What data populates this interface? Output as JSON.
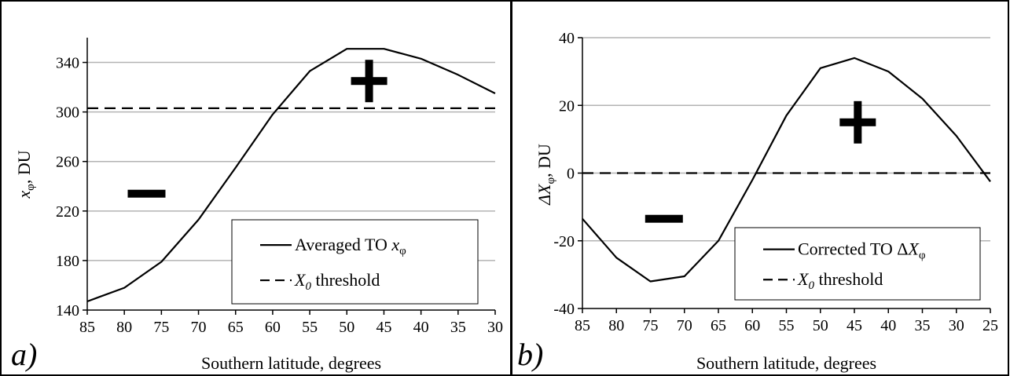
{
  "chart_data": [
    {
      "panel_label": "a)",
      "type": "line",
      "xlabel": "Southern latitude, degrees",
      "ylabel_main": "x",
      "ylabel_sub": "φ",
      "ylabel_tail": ", DU",
      "xlim": [
        85,
        30
      ],
      "ylim": [
        140,
        360
      ],
      "xticks": [
        85,
        80,
        75,
        70,
        65,
        60,
        55,
        50,
        45,
        40,
        35,
        30
      ],
      "yticks": [
        140,
        180,
        220,
        260,
        300,
        340
      ],
      "grid": true,
      "legend_placement": "bottom-right",
      "series": [
        {
          "name": "Averaged TO x",
          "name_sub": "φ",
          "style": "solid",
          "x": [
            85,
            80,
            75,
            70,
            65,
            60,
            55,
            50,
            45,
            40,
            35,
            30
          ],
          "y": [
            147,
            158,
            179,
            213,
            255,
            298,
            333,
            351,
            351,
            343,
            330,
            315
          ]
        },
        {
          "name": "X",
          "name_sub": "0",
          "name_tail": " threshold",
          "style": "dashed",
          "x": [
            85,
            30
          ],
          "y": [
            303,
            303
          ]
        }
      ],
      "annotations": [
        {
          "symbol": "minus",
          "x": 77,
          "y": 234
        },
        {
          "symbol": "plus",
          "x": 47,
          "y": 325
        }
      ]
    },
    {
      "panel_label": "b)",
      "type": "line",
      "xlabel": "Southern latitude, degrees",
      "ylabel_main": "ΔX",
      "ylabel_sub": "φ",
      "ylabel_tail": ", DU",
      "xlim": [
        85,
        25
      ],
      "ylim": [
        -40,
        40
      ],
      "xticks": [
        85,
        80,
        75,
        70,
        65,
        60,
        55,
        50,
        45,
        40,
        35,
        30,
        25
      ],
      "yticks": [
        -40,
        -20,
        0,
        20,
        40
      ],
      "grid": true,
      "legend_placement": "bottom-right",
      "series": [
        {
          "name": "Corrected TO  ΔX",
          "name_sub": "φ",
          "style": "solid",
          "x": [
            85,
            80,
            75,
            70,
            65,
            60,
            55,
            50,
            45,
            40,
            35,
            30,
            25
          ],
          "y": [
            -13.5,
            -25,
            -32,
            -30.5,
            -20,
            -2,
            17,
            31,
            34,
            30,
            22,
            11,
            -2.5
          ]
        },
        {
          "name": "X",
          "name_sub": "0",
          "name_tail": " threshold",
          "style": "dashed",
          "x": [
            85,
            25
          ],
          "y": [
            0,
            0
          ]
        }
      ],
      "annotations": [
        {
          "symbol": "minus",
          "x": 73,
          "y": -13.5
        },
        {
          "symbol": "plus",
          "x": 44.5,
          "y": 15
        }
      ]
    }
  ]
}
